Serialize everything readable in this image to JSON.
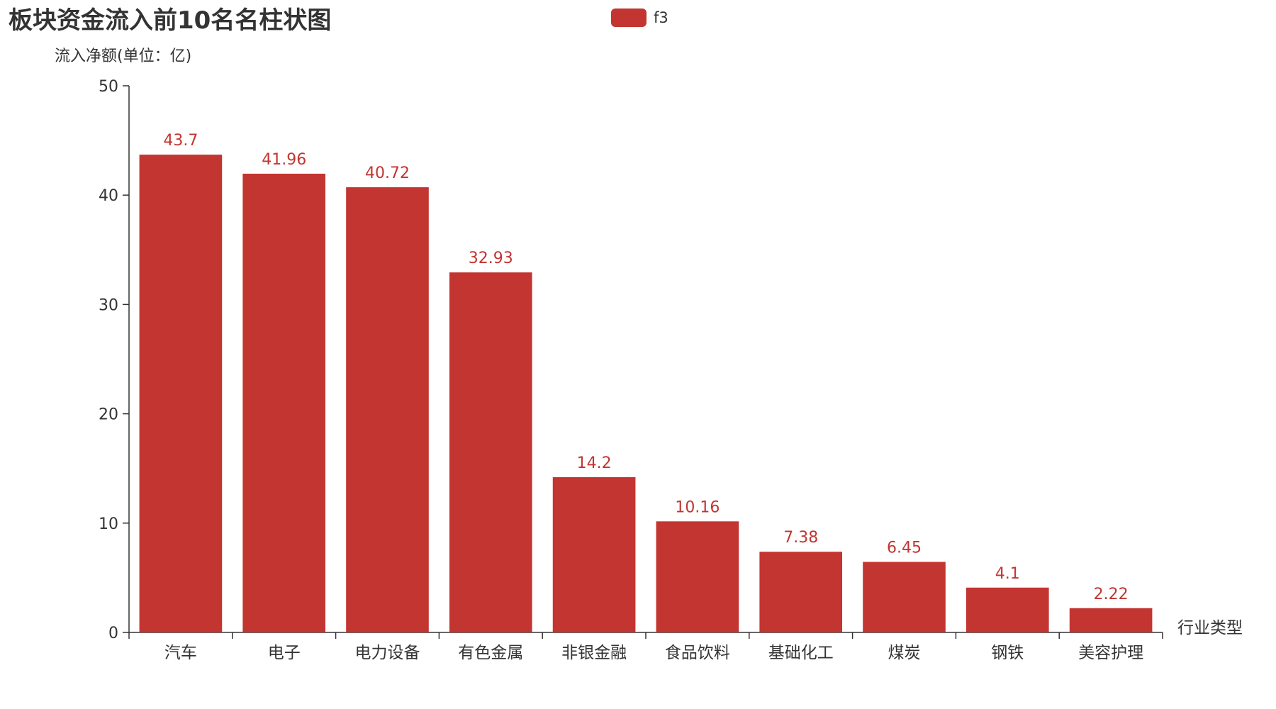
{
  "chart_data": {
    "type": "bar",
    "title": "板块资金流入前10名名柱状图",
    "ylabel": "流入净额(单位：亿)",
    "xlabel": "行业类型",
    "ylim": [
      0,
      50
    ],
    "yticks": [
      0,
      10,
      20,
      30,
      40,
      50
    ],
    "categories": [
      "汽车",
      "电子",
      "电力设备",
      "有色金属",
      "非银金融",
      "食品饮料",
      "基础化工",
      "煤炭",
      "钢铁",
      "美容护理"
    ],
    "series": [
      {
        "name": "f3",
        "values": [
          43.7,
          41.96,
          40.72,
          32.93,
          14.2,
          10.16,
          7.38,
          6.45,
          4.1,
          2.22
        ],
        "value_labels": [
          "43.7",
          "41.96",
          "40.72",
          "32.93",
          "14.2",
          "10.16",
          "7.38",
          "6.45",
          "4.1",
          "2.22"
        ]
      }
    ],
    "legend": {
      "position": "top-center",
      "entries": [
        "f3"
      ]
    },
    "colors": {
      "bar": "#c23531",
      "axis": "#333333",
      "text": "#333333"
    }
  }
}
